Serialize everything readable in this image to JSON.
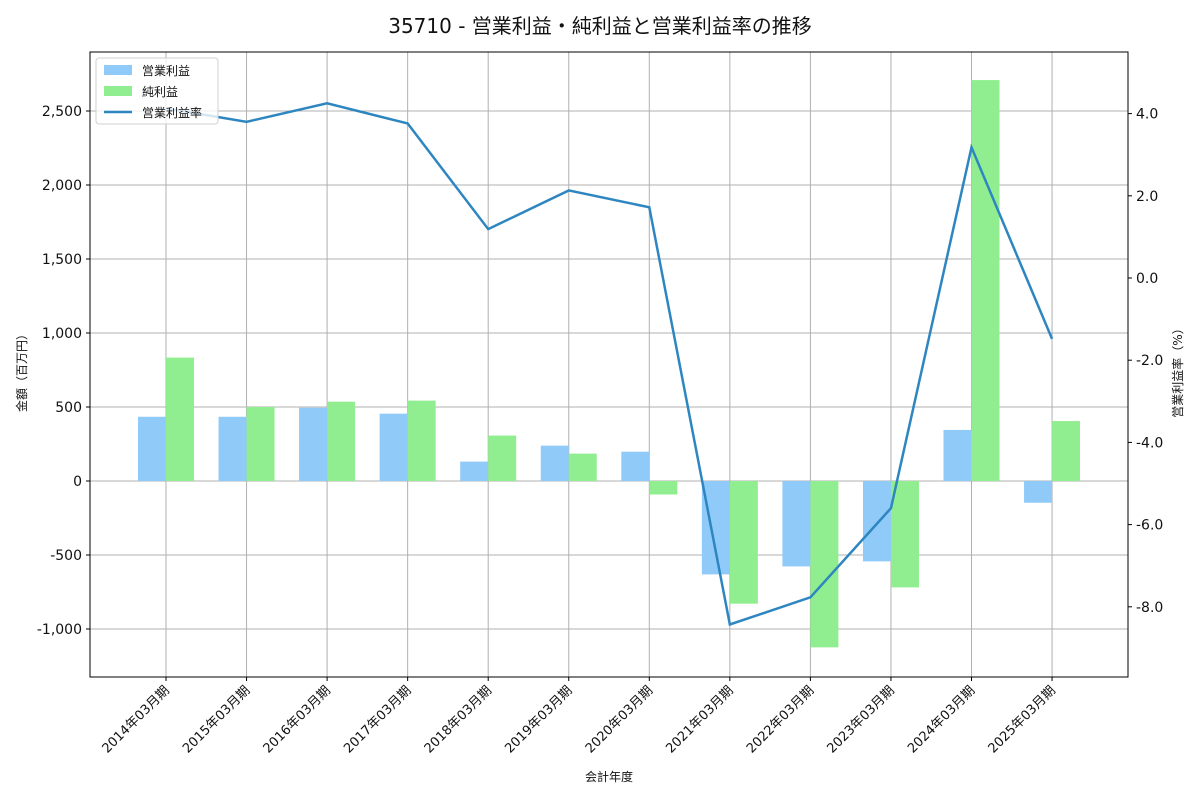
{
  "chart_data": {
    "type": "bar+line",
    "title": "35710 - 営業利益・純利益と営業利益率の推移",
    "xlabel": "会計年度",
    "ylabel": "金額（百万円）",
    "y2label": "営業利益率（%）",
    "categories": [
      "2014年03月期",
      "2015年03月期",
      "2016年03月期",
      "2017年03月期",
      "2018年03月期",
      "2019年03月期",
      "2020年03月期",
      "2021年03月期",
      "2022年03月期",
      "2023年03月期",
      "2024年03月期",
      "2025年03月期"
    ],
    "series": [
      {
        "name": "営業利益",
        "type": "bar",
        "axis": "left",
        "color": "#90caf9",
        "values": [
          434,
          434,
          495,
          455,
          131,
          239,
          198,
          -631,
          -577,
          -543,
          345,
          -147
        ]
      },
      {
        "name": "純利益",
        "type": "bar",
        "axis": "left",
        "color": "#90ee90",
        "values": [
          834,
          500,
          536,
          543,
          307,
          185,
          -91,
          -829,
          -1124,
          -719,
          2709,
          405
        ]
      },
      {
        "name": "営業利益率",
        "type": "line",
        "axis": "right",
        "color": "#2e86c1",
        "values": [
          4.13,
          3.8,
          4.25,
          3.76,
          1.19,
          2.13,
          1.72,
          -8.43,
          -7.77,
          -5.6,
          3.18,
          -1.48
        ]
      }
    ],
    "ylim": [
      -1320,
      2900
    ],
    "y2lim": [
      -9.6,
      5.4
    ],
    "yticks": [
      -1000,
      -500,
      0,
      500,
      1000,
      1500,
      2000,
      2500
    ],
    "ytick_labels": [
      "-1,000",
      "-500",
      "0",
      "500",
      "1,000",
      "1,500",
      "2,000",
      "2,500"
    ],
    "y2ticks": [
      -8,
      -6,
      -4,
      -2,
      0,
      2,
      4
    ],
    "y2tick_labels": [
      "-8.0",
      "-6.0",
      "-4.0",
      "-2.0",
      "0.0",
      "2.0",
      "4.0"
    ],
    "grid": true,
    "legend_position": "upper left"
  },
  "legend": {
    "items": [
      {
        "label": "営業利益",
        "kind": "patch",
        "color": "#90caf9"
      },
      {
        "label": "純利益",
        "kind": "patch",
        "color": "#90ee90"
      },
      {
        "label": "営業利益率",
        "kind": "line",
        "color": "#2e86c1"
      }
    ]
  }
}
